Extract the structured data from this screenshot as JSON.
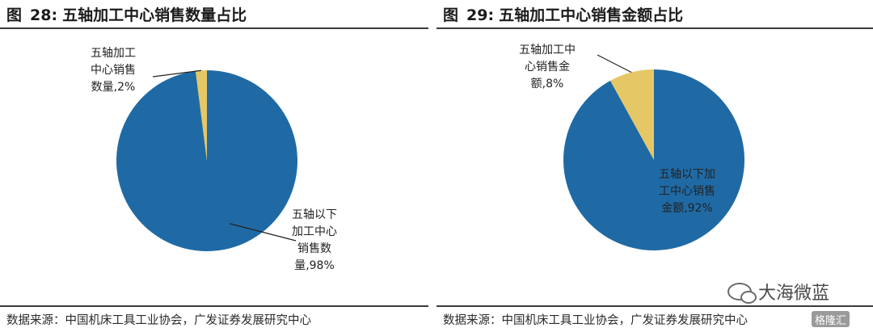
{
  "figures": [
    {
      "fig_label": "图",
      "fig_num": "28:",
      "title": "五轴加工中心销售数量占比",
      "source": "数据来源：中国机床工具工业协会，广发证券发展研究中心"
    },
    {
      "fig_label": "图",
      "fig_num": "29:",
      "title": "五轴加工中心销售金额占比",
      "source": "数据来源：中国机床工具工业协会，广发证券发展研究中心"
    }
  ],
  "chart_data": [
    {
      "type": "pie",
      "title": "五轴加工中心销售数量占比",
      "slices": [
        {
          "label": "五轴以下加工中心销售数量",
          "value": 98,
          "value_text": "98%",
          "color": "#1f6aa5",
          "label_lines": [
            "五轴以下",
            "加工中心",
            "销售数",
            "量,98%"
          ]
        },
        {
          "label": "五轴加工中心销售数量",
          "value": 2,
          "value_text": "2%",
          "color": "#e6c765",
          "label_lines": [
            "五轴加工",
            "中心销售",
            "数量,2%"
          ]
        }
      ]
    },
    {
      "type": "pie",
      "title": "五轴加工中心销售金额占比",
      "slices": [
        {
          "label": "五轴以下加工中心销售金额",
          "value": 92,
          "value_text": "92%",
          "color": "#1f6aa5",
          "label_lines": [
            "五轴以下加",
            "工中心销售",
            "金额,92%"
          ]
        },
        {
          "label": "五轴加工中心销售金额",
          "value": 8,
          "value_text": "8%",
          "color": "#e6c765",
          "label_lines": [
            "五轴加工中",
            "心销售金",
            "额,8%"
          ]
        }
      ]
    }
  ],
  "watermark": {
    "text": "大海微蓝",
    "icon": "wechat-icon"
  },
  "badge": {
    "text": "格隆汇"
  }
}
